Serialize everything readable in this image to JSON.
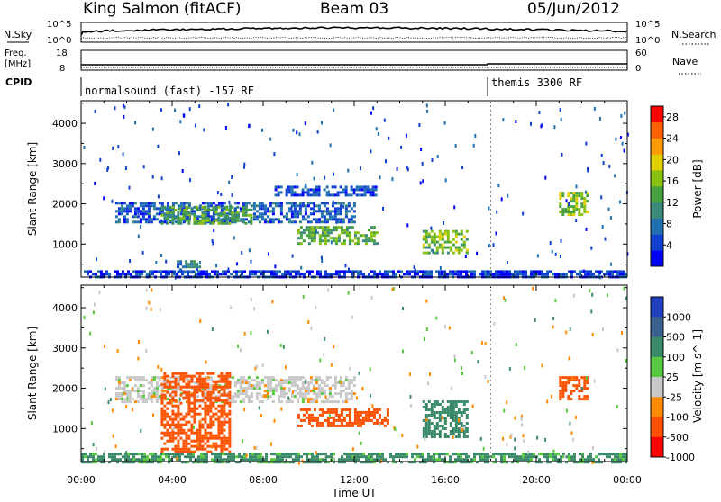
{
  "header": {
    "station": "King Salmon (fitACF)",
    "beam": "Beam 03",
    "date": "05/Jun/2012"
  },
  "top_panels": {
    "nsky_label": "N.Sky",
    "nsky_ticks": [
      "10^5",
      "10^0"
    ],
    "nsearch_label": "N.Search",
    "nsearch_ticks": [
      "10^5",
      "10^0"
    ],
    "freq_label_1": "Freq.",
    "freq_label_2": "[MHz]",
    "freq_ticks": [
      "18",
      "8"
    ],
    "nave_label": "Nave",
    "nave_ticks": [
      "60",
      "0"
    ],
    "cpid_label": "CPID",
    "cpid_segments": [
      {
        "label": "normalsound (fast) -157 RF",
        "start_hour": 0
      },
      {
        "label": "themis 3300 RF",
        "start_hour": 18
      }
    ]
  },
  "chart_data": [
    {
      "type": "heatmap",
      "title": "",
      "xlabel": "Time UT",
      "ylabel": "Slant Range [km]",
      "xlim": [
        0,
        24
      ],
      "ylim": [
        180,
        4560
      ],
      "x_ticks": [
        "00:00",
        "04:00",
        "08:00",
        "12:00",
        "16:00",
        "20:00",
        "00:00"
      ],
      "y_ticks": [
        1000,
        2000,
        3000,
        4000
      ],
      "colorbar": {
        "label": "Power [dB]",
        "ticks": [
          "4",
          "8",
          "12",
          "16",
          "20",
          "24",
          "28"
        ],
        "range": [
          0,
          30
        ],
        "colors": [
          "#0000ff",
          "#1040d0",
          "#2070b0",
          "#3a8a7a",
          "#47a040",
          "#88c010",
          "#e0d000",
          "#ff9a00",
          "#ff6000",
          "#ff0000"
        ]
      },
      "regions": [
        {
          "t0": 1.5,
          "t1": 12.0,
          "r0": 1550,
          "r1": 2050,
          "value": 6
        },
        {
          "t0": 8.5,
          "t1": 13.0,
          "r0": 2200,
          "r1": 2450,
          "value": 5
        },
        {
          "t0": 3.5,
          "t1": 7.5,
          "r0": 1500,
          "r1": 1950,
          "value": 13
        },
        {
          "t0": 9.5,
          "t1": 13.0,
          "r0": 1000,
          "r1": 1450,
          "value": 14
        },
        {
          "t0": 15.0,
          "t1": 17.0,
          "r0": 750,
          "r1": 1350,
          "value": 15
        },
        {
          "t0": 4.2,
          "t1": 5.2,
          "r0": 300,
          "r1": 600,
          "value": 9
        },
        {
          "t0": 21.0,
          "t1": 22.2,
          "r0": 1750,
          "r1": 2300,
          "value": 16
        },
        {
          "t0": 0.0,
          "t1": 24.0,
          "r0": 180,
          "r1": 350,
          "value": 4
        }
      ]
    },
    {
      "type": "heatmap",
      "title": "",
      "xlabel": "Time UT",
      "ylabel": "Slant Range [km]",
      "xlim": [
        0,
        24
      ],
      "ylim": [
        180,
        4560
      ],
      "x_ticks": [
        "00:00",
        "04:00",
        "08:00",
        "12:00",
        "16:00",
        "20:00",
        "00:00"
      ],
      "y_ticks": [
        1000,
        2000,
        3000,
        4000
      ],
      "colorbar": {
        "label": "Velocity [m s^-1]",
        "ticks": [
          "1000",
          "500",
          "100",
          "25",
          "-25",
          "-100",
          "-500",
          "-1000"
        ],
        "colors": [
          "#2040c0",
          "#3a6090",
          "#3a8a6a",
          "#58c840",
          "#c8c8c8",
          "#ff8a00",
          "#ff5000",
          "#ff0000"
        ]
      },
      "regions": [
        {
          "t0": 1.5,
          "t1": 12.0,
          "r0": 1650,
          "r1": 2300,
          "value": 0
        },
        {
          "t0": 3.5,
          "t1": 6.5,
          "r0": 400,
          "r1": 2400,
          "value": -250
        },
        {
          "t0": 9.5,
          "t1": 13.5,
          "r0": 1050,
          "r1": 1500,
          "value": -300
        },
        {
          "t0": 15.0,
          "t1": 17.0,
          "r0": 800,
          "r1": 1700,
          "value": 200
        },
        {
          "t0": 21.0,
          "t1": 22.3,
          "r0": 1750,
          "r1": 2300,
          "value": -300
        },
        {
          "t0": 0.0,
          "t1": 24.0,
          "r0": 180,
          "r1": 400,
          "value": 80
        }
      ]
    }
  ]
}
